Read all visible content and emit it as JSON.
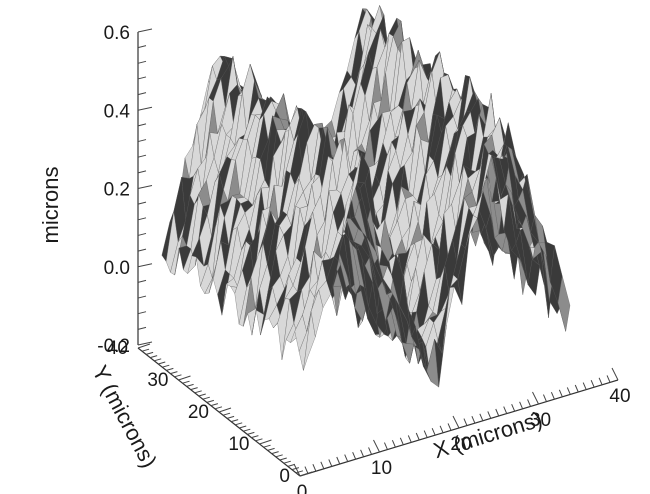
{
  "chart_data": {
    "type": "surface",
    "title": "",
    "z_axis": {
      "label": "microns",
      "ticks": [
        -0.2,
        0.0,
        0.2,
        0.4,
        0.6
      ],
      "tick_labels": [
        "-0.2",
        "0.0",
        "0.2",
        "0.4",
        "0.6"
      ],
      "range": [
        -0.2,
        0.6
      ]
    },
    "x_axis": {
      "label": "X (microns)",
      "ticks": [
        0,
        10,
        20,
        30,
        40
      ],
      "tick_labels": [
        "0",
        "10",
        "20",
        "30",
        "40"
      ],
      "range": [
        0,
        40
      ]
    },
    "y_axis": {
      "label": "Y (microns)",
      "ticks": [
        0,
        10,
        20,
        30,
        40
      ],
      "tick_labels": [
        "0",
        "10",
        "20",
        "30",
        "40"
      ],
      "range": [
        0,
        40
      ]
    },
    "grid": false,
    "surface": {
      "description": "two parallel ridges running along Y",
      "ridge_x_centers": [
        10,
        28
      ],
      "ridge_peak_height": 0.5,
      "base_height": -0.1,
      "colors": {
        "light": "#d8d8d8",
        "mid": "#8c8c8c",
        "dark": "#3a3a3a"
      }
    }
  }
}
